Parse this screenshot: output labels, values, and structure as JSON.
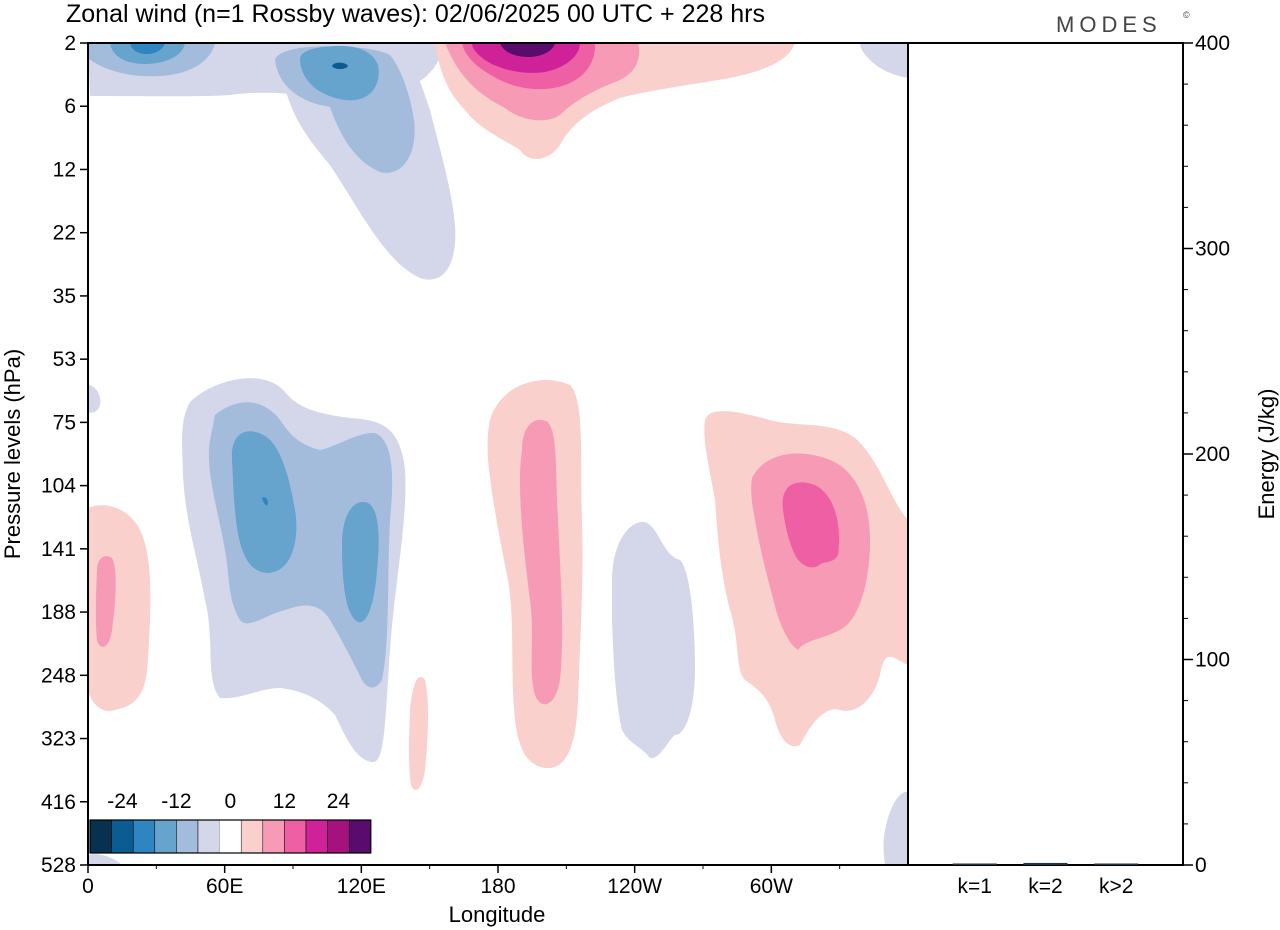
{
  "header": {
    "title": "Zonal wind (n=1 Rossby waves):  02/06/2025  00 UTC  + 228 hrs",
    "brand": "MODES",
    "brand_mark": "©"
  },
  "chart_data": [
    {
      "type": "heatmap",
      "title": "Zonal wind (n=1 Rossby waves):  02/06/2025  00 UTC  + 228 hrs",
      "xlabel": "Longitude",
      "ylabel": "Pressure levels (hPa)",
      "x_ticks": [
        "0",
        "60E",
        "120E",
        "180",
        "120W",
        "60W"
      ],
      "x_tick_values": [
        0,
        60,
        120,
        180,
        240,
        300
      ],
      "xlim": [
        0,
        360
      ],
      "y_ticks": [
        "2",
        "6",
        "12",
        "22",
        "35",
        "53",
        "75",
        "104",
        "141",
        "188",
        "248",
        "323",
        "416",
        "528"
      ],
      "y_axis": "pressure levels, top 2 hPa to bottom 528 hPa, equally spaced levels",
      "grid": false,
      "colorbar": {
        "labels": [
          "-24",
          "-12",
          "0",
          "12",
          "24"
        ],
        "colors": [
          "#08304f",
          "#0a5c92",
          "#2f85c0",
          "#66a3cd",
          "#a3bcdc",
          "#d4d6e9",
          "#ffffff",
          "#fad0cd",
          "#f79ab6",
          "#ee5fa4",
          "#cf2198",
          "#a4127e",
          "#5a0b6e"
        ],
        "placement": "bottom-left inside plot"
      },
      "features": [
        {
          "sign": "negative",
          "lon": 20,
          "level": "2",
          "peak": -20
        },
        {
          "sign": "negative",
          "lon": 110,
          "level": "4",
          "peak": -18
        },
        {
          "sign": "negative",
          "lon": 110,
          "level": "22",
          "peak": -6
        },
        {
          "sign": "positive",
          "lon": 190,
          "level": "2",
          "peak": 24
        },
        {
          "sign": "positive",
          "lon": 280,
          "level": "4",
          "peak": 8
        },
        {
          "sign": "negative",
          "lon": 80,
          "level": "120",
          "peak": -18
        },
        {
          "sign": "negative",
          "lon": 120,
          "level": "150",
          "peak": -14
        },
        {
          "sign": "positive",
          "lon": 8,
          "level": "188",
          "peak": 10
        },
        {
          "sign": "positive",
          "lon": 150,
          "level": "323",
          "peak": 6
        },
        {
          "sign": "positive",
          "lon": 200,
          "level": "160",
          "peak": 10
        },
        {
          "sign": "negative",
          "lon": 245,
          "level": "230",
          "peak": -6
        },
        {
          "sign": "positive",
          "lon": 320,
          "level": "130",
          "peak": 14
        },
        {
          "sign": "negative",
          "lon": 355,
          "level": "500",
          "peak": -6
        }
      ]
    },
    {
      "type": "bar",
      "categories": [
        "k=1",
        "k=2",
        "k>2"
      ],
      "values": [
        0.5,
        1.0,
        0.5
      ],
      "ylabel": "Energy (J/kg)",
      "ylim": [
        0,
        400
      ],
      "y_ticks": [
        "0",
        "100",
        "200",
        "300",
        "400"
      ],
      "y_tick_values": [
        0,
        100,
        200,
        300,
        400
      ],
      "colors": [
        "#223344",
        "#223344",
        "#223344"
      ],
      "yaxis_position": "right"
    }
  ]
}
